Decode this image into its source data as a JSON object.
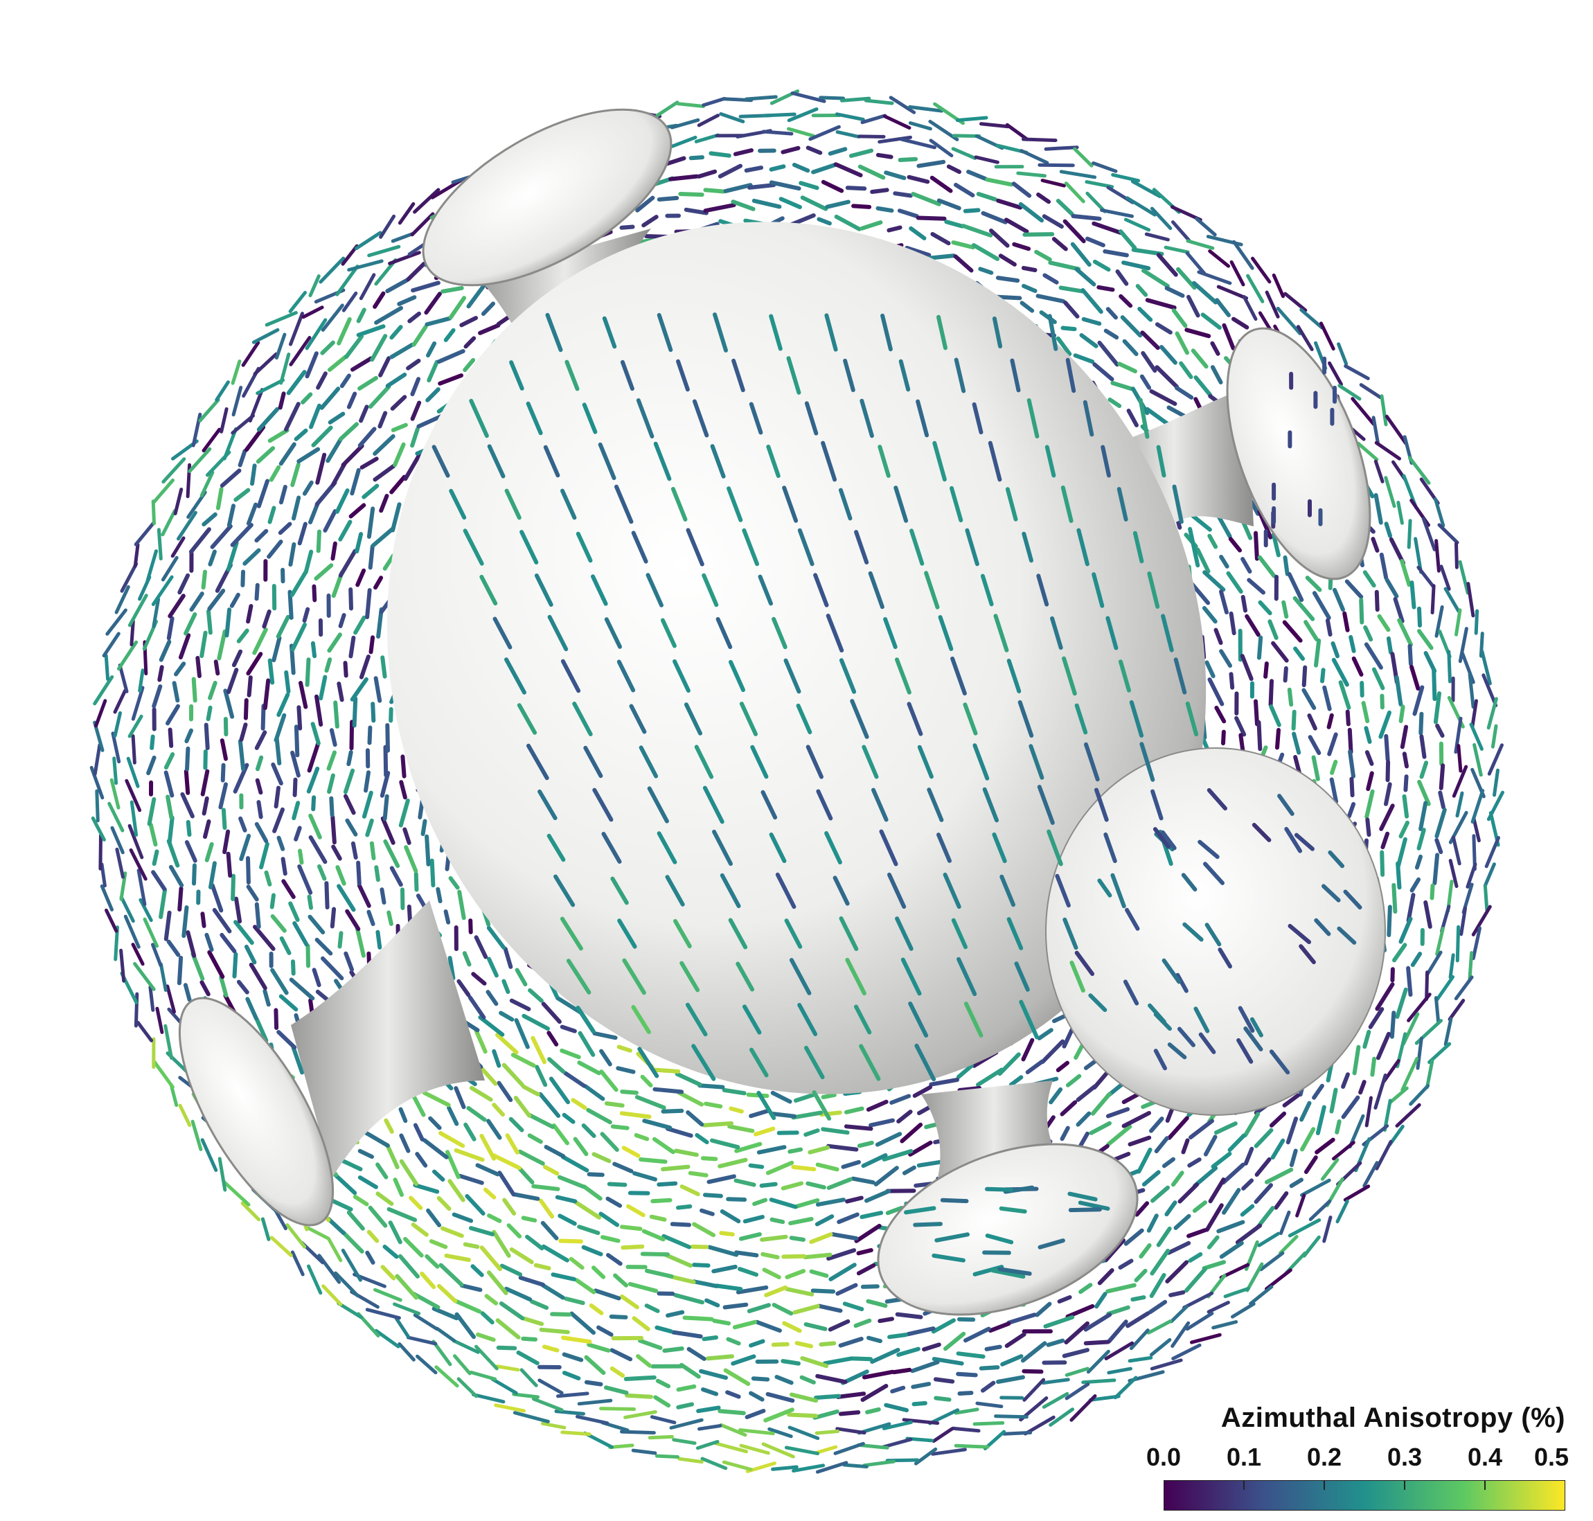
{
  "colorbar": {
    "title": "Azimuthal Anisotropy (%)",
    "ticks": [
      "0.0",
      "0.1",
      "0.2",
      "0.3",
      "0.4",
      "0.5"
    ],
    "min": 0.0,
    "max": 0.5,
    "colormap": "viridis",
    "colors": [
      "#440154",
      "#3b528b",
      "#21918c",
      "#5ec962",
      "#fde725"
    ]
  },
  "scene": {
    "background": "#ffffff",
    "body_color": "#f2f2f0",
    "objects": [
      "central-sphere",
      "upper-left-lobe",
      "right-lobe",
      "right-blob",
      "bottom-lobe",
      "left-lobe"
    ]
  }
}
